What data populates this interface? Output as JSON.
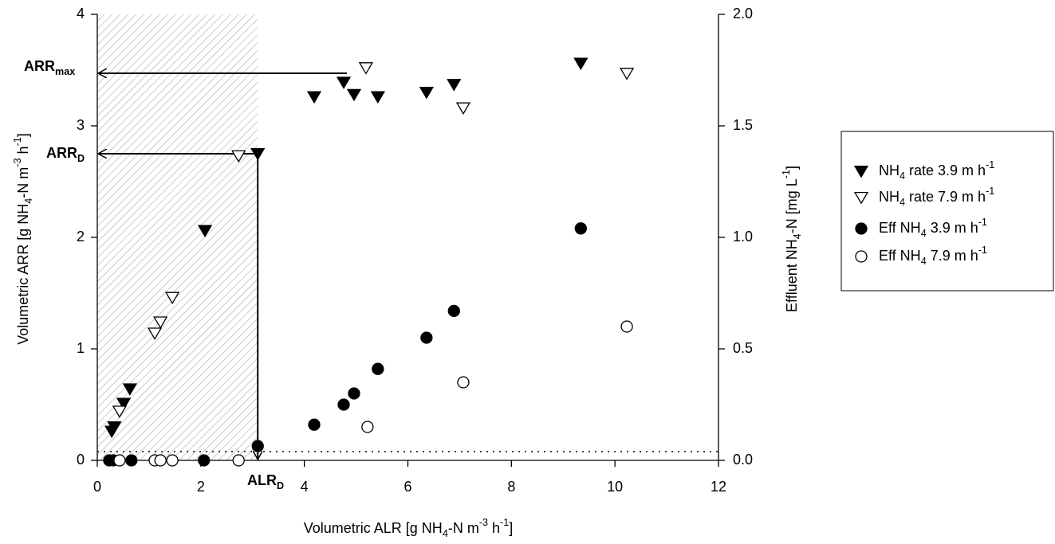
{
  "chart_data": {
    "type": "scatter",
    "xlabel": [
      {
        "text": "Volumetric ALR [g NH"
      },
      {
        "text": "4",
        "shift": "sub"
      },
      {
        "text": "-N m"
      },
      {
        "text": "-3",
        "shift": "super"
      },
      {
        "text": " h"
      },
      {
        "text": "-1",
        "shift": "super"
      },
      {
        "text": "]"
      }
    ],
    "ylabel": [
      {
        "text": "Volumetric ARR [g NH"
      },
      {
        "text": "4",
        "shift": "sub"
      },
      {
        "text": "-N m"
      },
      {
        "text": "-3",
        "shift": "super"
      },
      {
        "text": " h"
      },
      {
        "text": "-1",
        "shift": "super"
      },
      {
        "text": "]"
      }
    ],
    "y2label": [
      {
        "text": "Effluent NH"
      },
      {
        "text": "4",
        "shift": "sub"
      },
      {
        "text": "-N [mg L"
      },
      {
        "text": "-1",
        "shift": "super"
      },
      {
        "text": "]"
      }
    ],
    "xlim": [
      0,
      12
    ],
    "xticks": [
      0,
      2,
      4,
      6,
      8,
      10,
      12
    ],
    "ylim": [
      0,
      4
    ],
    "yticks": [
      0,
      1,
      2,
      3,
      4
    ],
    "y2lim": [
      0,
      2
    ],
    "y2ticks": [
      {
        "value": 0,
        "label": "0.0"
      },
      0.5,
      {
        "value": 1,
        "label": "1.0"
      },
      1.5,
      {
        "value": 2,
        "label": "2.0"
      }
    ],
    "annotations": {
      "arr_max": [
        {
          "text": "ARR"
        },
        {
          "text": "max",
          "shift": "sub"
        }
      ],
      "arr_d": [
        {
          "text": "ARR"
        },
        {
          "text": "D",
          "shift": "sub"
        }
      ],
      "alr_d": [
        {
          "text": "ALR"
        },
        {
          "text": "D",
          "shift": "sub"
        }
      ]
    },
    "series": [
      {
        "name": [
          {
            "text": "NH"
          },
          {
            "text": "4",
            "shift": "sub"
          },
          {
            "text": " rate 3.9 m h"
          },
          {
            "text": "-1",
            "shift": "super"
          }
        ],
        "marker": "triangle",
        "filled": true,
        "color": "#000000",
        "x": [
          0.28,
          0.33,
          0.51,
          0.63,
          2.08,
          3.1,
          4.19,
          4.76,
          4.96,
          5.42,
          6.36,
          6.89,
          9.34
        ],
        "values": [
          0.26,
          0.3,
          0.51,
          0.64,
          2.06,
          2.75,
          3.26,
          3.39,
          3.28,
          3.26,
          3.3,
          3.37,
          3.56
        ]
      },
      {
        "name": [
          {
            "text": "NH"
          },
          {
            "text": "4",
            "shift": "sub"
          },
          {
            "text": " rate 7.9 m h"
          },
          {
            "text": "-1",
            "shift": "super"
          }
        ],
        "marker": "triangle",
        "filled": false,
        "color": "#000000",
        "x": [
          0.43,
          1.11,
          1.22,
          1.45,
          2.73,
          5.19,
          7.07,
          10.23
        ],
        "values": [
          0.44,
          1.14,
          1.24,
          1.46,
          2.73,
          3.52,
          3.16,
          3.47
        ]
      },
      {
        "name": [
          {
            "text": "Eff NH"
          },
          {
            "text": "4",
            "shift": "sub"
          },
          {
            "text": " 3.9 m h"
          },
          {
            "text": "-1",
            "shift": "super"
          }
        ],
        "marker": "circle",
        "filled": true,
        "color": "#000000",
        "axis": "y2",
        "x": [
          0.23,
          0.31,
          0.66,
          2.06,
          3.1,
          4.19,
          4.76,
          4.96,
          5.42,
          6.36,
          6.89,
          9.34
        ],
        "values": [
          0,
          0,
          0,
          0,
          0.064,
          0.16,
          0.25,
          0.3,
          0.41,
          0.55,
          0.67,
          1.04
        ]
      },
      {
        "name": [
          {
            "text": "Eff NH"
          },
          {
            "text": "4",
            "shift": "sub"
          },
          {
            "text": " 7.9 m h"
          },
          {
            "text": "-1",
            "shift": "super"
          }
        ],
        "marker": "circle",
        "filled": false,
        "color": "#000000",
        "axis": "y2",
        "x": [
          0.43,
          1.11,
          1.22,
          1.45,
          2.73,
          5.22,
          7.07,
          10.23
        ],
        "values": [
          0,
          0,
          0,
          0,
          0,
          0.15,
          0.35,
          0.6
        ]
      }
    ]
  }
}
